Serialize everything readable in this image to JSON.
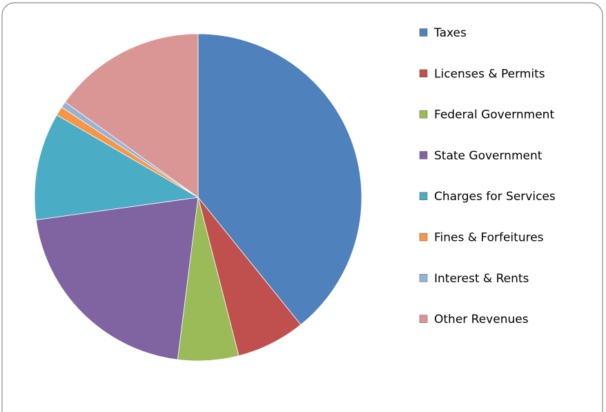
{
  "chart_data": {
    "type": "pie",
    "categories": [
      "Taxes",
      "Licenses & Permits",
      "Federal Government",
      "State Government",
      "Charges for Services",
      "Fines & Forfeitures",
      "Interest & Rents",
      "Other Revenues"
    ],
    "values": [
      39.2,
      6.8,
      6.0,
      20.8,
      10.6,
      0.9,
      0.6,
      15.1
    ],
    "colors": [
      "#4f81bd",
      "#c0504d",
      "#9bbb59",
      "#8064a2",
      "#4bacc6",
      "#f79646",
      "#95b3d7",
      "#d99694"
    ],
    "legend": "right"
  }
}
